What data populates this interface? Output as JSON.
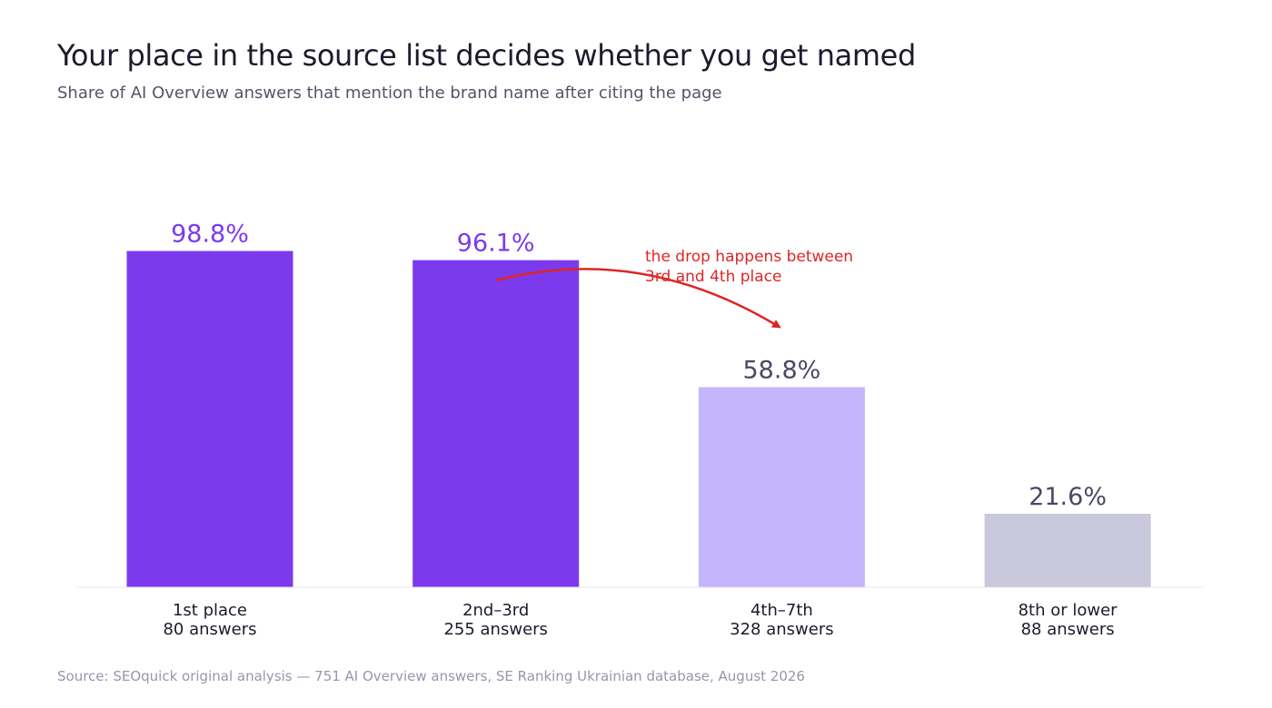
{
  "chart_data": {
    "type": "bar",
    "title": "Your place in the source list decides whether you get named",
    "subtitle": "Share of AI Overview answers that mention the brand name after citing the page",
    "categories": [
      "1st place",
      "2nd–3rd",
      "4th–7th",
      "8th or lower"
    ],
    "sublabels": [
      "80 answers",
      "255 answers",
      "328 answers",
      "88 answers"
    ],
    "values": [
      98.8,
      96.1,
      58.8,
      21.6
    ],
    "value_labels": [
      "98.8%",
      "96.1%",
      "58.8%",
      "21.6%"
    ],
    "ylim": [
      0,
      100
    ],
    "grid": false,
    "legend": "none",
    "bar_colors": [
      "#7c3aed",
      "#7c3aed",
      "#c4b5fd",
      "#cac8dc"
    ],
    "value_label_colors": [
      "#7c3aed",
      "#7c3aed",
      "#4a4866",
      "#4a4866"
    ],
    "annotation": {
      "text_lines": [
        "the drop happens between",
        "3rd and 4th place"
      ],
      "color": "#dc2626",
      "from_category": "2nd–3rd",
      "to_category": "4th–7th"
    },
    "source": "Source: SEOquick original analysis — 751 AI Overview answers, SE Ranking Ukrainian database, August 2026"
  },
  "colors": {
    "axis": "#e7e6ee",
    "category_label": "#1c1b2e"
  }
}
